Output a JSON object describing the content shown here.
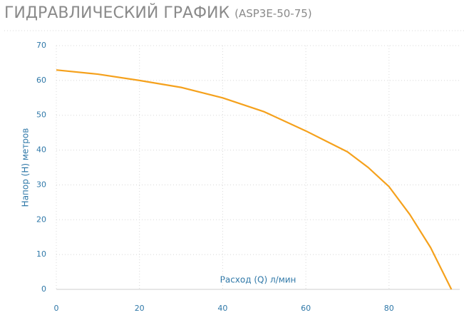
{
  "chart_data": {
    "type": "line",
    "title": "ГИДРАВЛИЧЕСКИЙ ГРАФИК",
    "subtitle": "(ASP3E-50-75)",
    "x_label": "Расход (Q) л/мин",
    "y_label": "Напор (H) метров",
    "x": [
      0,
      10,
      20,
      30,
      40,
      50,
      60,
      65,
      70,
      75,
      80,
      85,
      90,
      95
    ],
    "values": [
      63,
      61.8,
      60,
      58,
      55,
      51,
      45.5,
      42.5,
      39.5,
      35,
      29.5,
      21.5,
      12,
      0
    ],
    "color": "#f5a11c",
    "xlim": [
      0,
      97
    ],
    "xticks": [
      0,
      20,
      40,
      60,
      80
    ],
    "ylim": [
      0,
      70
    ],
    "yticks": [
      0,
      10,
      20,
      30,
      40,
      50,
      60,
      70
    ],
    "grid": true
  }
}
